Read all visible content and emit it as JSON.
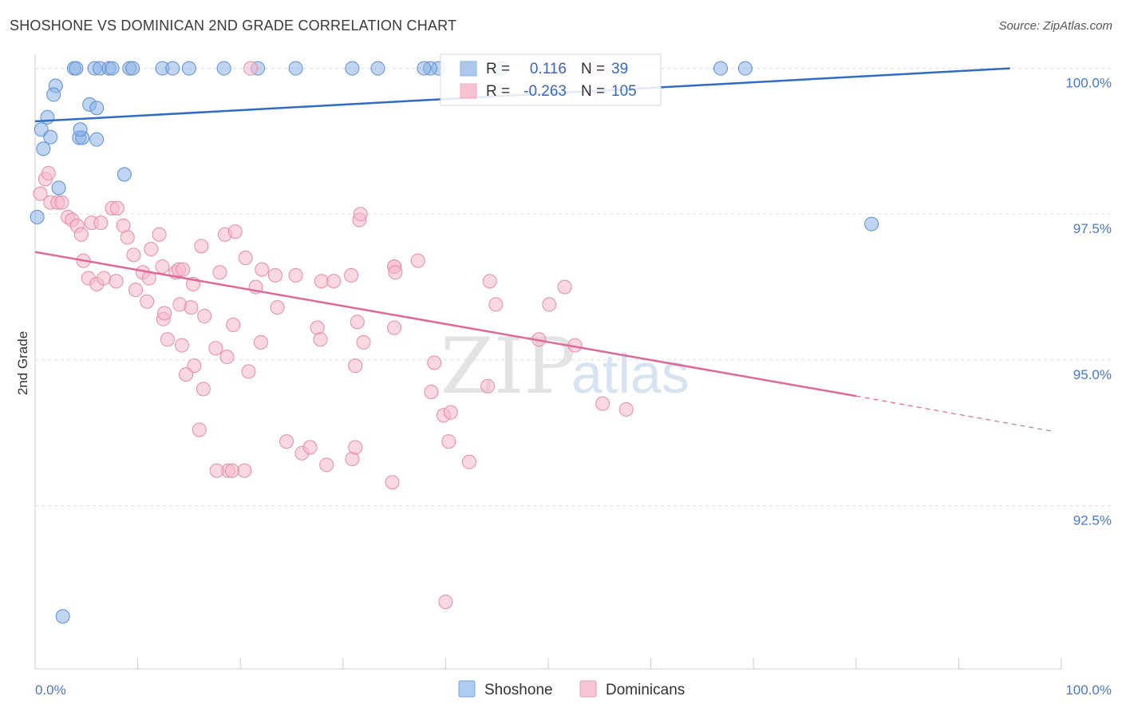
{
  "header": {
    "title": "SHOSHONE VS DOMINICAN 2ND GRADE CORRELATION CHART",
    "source": "Source: ZipAtlas.com"
  },
  "watermark": {
    "zip": "ZIP",
    "atlas": "atlas"
  },
  "chart_data": {
    "type": "scatter",
    "ylabel": "2nd Grade",
    "xlim": [
      0,
      100
    ],
    "ylim": [
      89.7,
      100.35
    ],
    "y_ticks": [
      {
        "value": 100.0,
        "label": "100.0%"
      },
      {
        "value": 97.5,
        "label": "97.5%"
      },
      {
        "value": 95.0,
        "label": "95.0%"
      },
      {
        "value": 92.5,
        "label": "92.5%"
      }
    ],
    "x_tick_labels": {
      "min": "0.0%",
      "max": "100.0%"
    },
    "grid": true,
    "legend_top": [
      {
        "r_label": "R =",
        "r_value": "0.116",
        "n_label": "N =",
        "n_value": "39",
        "color": "#8ab3e6"
      },
      {
        "r_label": "R =",
        "r_value": "-0.263",
        "n_label": "N =",
        "n_value": "105",
        "color": "#f3a9c0"
      }
    ],
    "series": [
      {
        "name": "Shoshone",
        "color": "#8ab3e6",
        "stroke": "#5b8fd4",
        "trend_color": "#2f6cc4",
        "trend": {
          "x0": 0,
          "y0": 99.09,
          "x1": 95,
          "y1": 100.0,
          "dash_to": null
        },
        "points": [
          [
            3.8,
            100
          ],
          [
            4.0,
            100
          ],
          [
            5.8,
            100
          ],
          [
            6.3,
            100
          ],
          [
            7.2,
            100
          ],
          [
            7.5,
            100
          ],
          [
            9.2,
            100
          ],
          [
            9.5,
            100
          ],
          [
            12.4,
            100
          ],
          [
            13.4,
            100
          ],
          [
            15.0,
            100
          ],
          [
            18.4,
            100
          ],
          [
            21.7,
            100
          ],
          [
            25.4,
            100
          ],
          [
            30.9,
            100
          ],
          [
            33.4,
            100
          ],
          [
            39.3,
            100
          ],
          [
            45.4,
            100
          ],
          [
            38.5,
            100
          ],
          [
            37.9,
            100
          ],
          [
            66.8,
            100
          ],
          [
            69.2,
            100
          ],
          [
            2.0,
            99.7
          ],
          [
            1.8,
            99.55
          ],
          [
            5.3,
            99.38
          ],
          [
            6.0,
            99.32
          ],
          [
            1.2,
            99.16
          ],
          [
            0.6,
            98.95
          ],
          [
            1.5,
            98.82
          ],
          [
            4.3,
            98.81
          ],
          [
            4.6,
            98.81
          ],
          [
            4.4,
            98.95
          ],
          [
            6.0,
            98.78
          ],
          [
            0.8,
            98.62
          ],
          [
            8.7,
            98.18
          ],
          [
            2.3,
            97.95
          ],
          [
            0.2,
            97.45
          ],
          [
            81.5,
            97.33
          ],
          [
            2.7,
            90.6
          ]
        ]
      },
      {
        "name": "Dominicans",
        "color": "#f5b8cb",
        "stroke": "#e889a8",
        "trend_color": "#e0679a",
        "trend": {
          "x0": 0,
          "y0": 96.85,
          "x1": 80,
          "y1": 94.38,
          "dash_to": {
            "x": 99,
            "y": 93.78
          }
        },
        "points": [
          [
            0.5,
            97.85
          ],
          [
            1.0,
            98.1
          ],
          [
            1.3,
            98.2
          ],
          [
            1.5,
            97.7
          ],
          [
            2.2,
            97.7
          ],
          [
            2.6,
            97.7
          ],
          [
            3.2,
            97.45
          ],
          [
            3.6,
            97.4
          ],
          [
            4.1,
            97.3
          ],
          [
            4.5,
            97.15
          ],
          [
            5.5,
            97.35
          ],
          [
            6.4,
            97.35
          ],
          [
            7.5,
            97.6
          ],
          [
            8.0,
            97.6
          ],
          [
            8.6,
            97.3
          ],
          [
            9.0,
            97.1
          ],
          [
            9.6,
            96.8
          ],
          [
            10.5,
            96.5
          ],
          [
            11.1,
            96.4
          ],
          [
            12.1,
            97.15
          ],
          [
            11.3,
            96.9
          ],
          [
            12.4,
            96.6
          ],
          [
            13.7,
            96.5
          ],
          [
            14.0,
            96.55
          ],
          [
            14.4,
            96.55
          ],
          [
            15.4,
            96.3
          ],
          [
            16.2,
            96.95
          ],
          [
            18.5,
            97.15
          ],
          [
            19.5,
            97.2
          ],
          [
            18.0,
            96.5
          ],
          [
            20.5,
            96.75
          ],
          [
            21.5,
            96.25
          ],
          [
            22.1,
            96.55
          ],
          [
            23.4,
            96.45
          ],
          [
            25.4,
            96.45
          ],
          [
            27.9,
            96.35
          ],
          [
            27.5,
            95.55
          ],
          [
            4.7,
            96.7
          ],
          [
            5.2,
            96.4
          ],
          [
            6.0,
            96.3
          ],
          [
            6.7,
            96.4
          ],
          [
            7.9,
            96.35
          ],
          [
            9.8,
            96.2
          ],
          [
            10.9,
            96.0
          ],
          [
            12.5,
            95.7
          ],
          [
            14.1,
            95.95
          ],
          [
            15.2,
            95.9
          ],
          [
            16.5,
            95.75
          ],
          [
            19.3,
            95.6
          ],
          [
            22.0,
            95.3
          ],
          [
            27.8,
            95.35
          ],
          [
            29.1,
            96.35
          ],
          [
            31.4,
            95.65
          ],
          [
            32.0,
            95.3
          ],
          [
            35.0,
            95.55
          ],
          [
            31.2,
            94.9
          ],
          [
            20.8,
            94.8
          ],
          [
            17.6,
            95.2
          ],
          [
            16.4,
            94.5
          ],
          [
            12.6,
            95.8
          ],
          [
            12.9,
            95.35
          ],
          [
            14.3,
            95.25
          ],
          [
            15.5,
            94.9
          ],
          [
            14.7,
            94.75
          ],
          [
            18.7,
            95.05
          ],
          [
            23.6,
            95.9
          ],
          [
            30.8,
            96.45
          ],
          [
            31.6,
            97.4
          ],
          [
            31.7,
            97.5
          ],
          [
            35.0,
            96.6
          ],
          [
            37.3,
            96.7
          ],
          [
            35.0,
            96.6
          ],
          [
            35.1,
            96.5
          ],
          [
            44.3,
            96.35
          ],
          [
            44.9,
            95.95
          ],
          [
            50.1,
            95.95
          ],
          [
            51.6,
            96.25
          ],
          [
            52.6,
            95.25
          ],
          [
            49.1,
            95.35
          ],
          [
            55.3,
            94.25
          ],
          [
            57.6,
            94.15
          ],
          [
            38.6,
            94.45
          ],
          [
            39.8,
            94.05
          ],
          [
            38.9,
            94.95
          ],
          [
            44.1,
            94.55
          ],
          [
            24.5,
            93.6
          ],
          [
            26.0,
            93.4
          ],
          [
            30.9,
            93.3
          ],
          [
            31.2,
            93.5
          ],
          [
            28.4,
            93.2
          ],
          [
            26.8,
            93.5
          ],
          [
            40.3,
            93.6
          ],
          [
            42.3,
            93.25
          ],
          [
            20.4,
            93.1
          ],
          [
            18.8,
            93.1
          ],
          [
            19.2,
            93.1
          ],
          [
            17.7,
            93.1
          ],
          [
            16.0,
            93.8
          ],
          [
            34.8,
            92.9
          ],
          [
            40.5,
            94.1
          ],
          [
            42.0,
            100.0
          ],
          [
            51.0,
            100.0
          ],
          [
            54.5,
            100.0
          ],
          [
            40.0,
            90.85
          ],
          [
            21.0,
            100
          ]
        ]
      }
    ]
  },
  "bottom_legend": [
    {
      "label": "Shoshone",
      "color": "#aecbf0",
      "stroke": "#7aa5dc"
    },
    {
      "label": "Dominicans",
      "color": "#f7c6d5",
      "stroke": "#e99bb5"
    }
  ]
}
